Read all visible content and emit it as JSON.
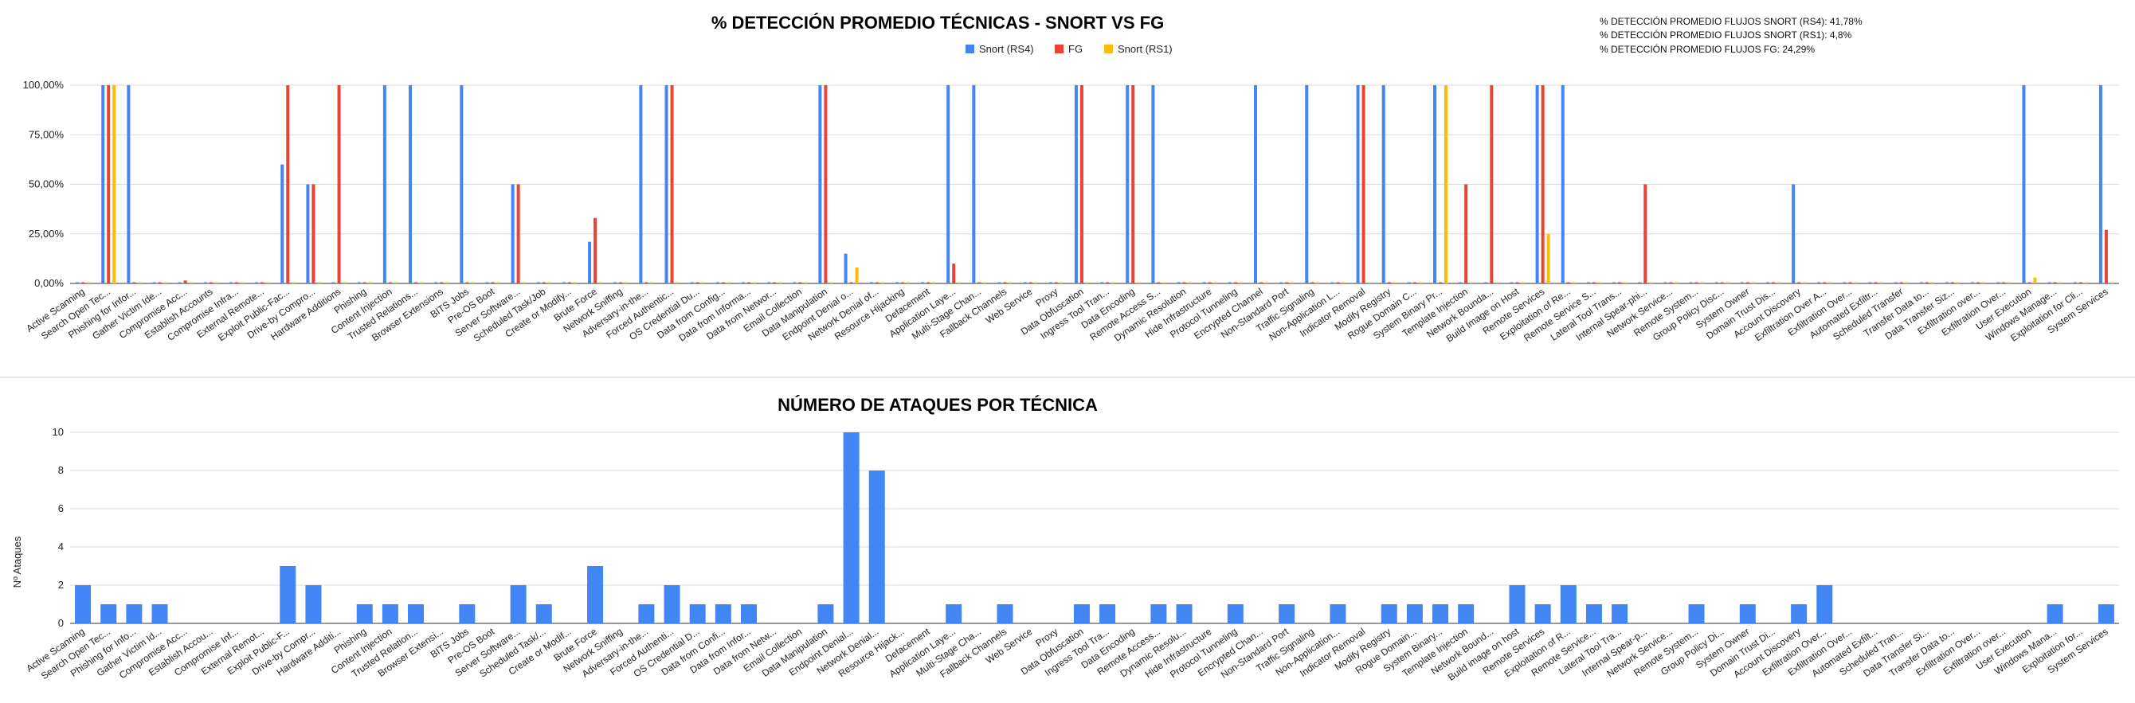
{
  "notes": [
    "% DETECCIÓN PROMEDIO FLUJOS SNORT (RS4): 41,78%",
    "% DETECCIÓN PROMEDIO FLUJOS SNORT (RS1): 4,8%",
    "% DETECCIÓN PROMEDIO FLUJOS FG: 24,29%"
  ],
  "colors": {
    "snort_rs4": "#4285f4",
    "fg": "#ea4335",
    "snort_rs1": "#fbbc04"
  },
  "chart_data": [
    {
      "type": "bar",
      "title": "% DETECCIÓN PROMEDIO TÉCNICAS - SNORT VS FG",
      "xlabel": "",
      "ylabel": "",
      "ylim": [
        0,
        100
      ],
      "yticks": [
        "0,00%",
        "25,00%",
        "50,00%",
        "75,00%",
        "100,00%"
      ],
      "legend_position": "top",
      "grid": true,
      "categories": [
        "Active Scanning",
        "Search Open Tec...",
        "Phishing for Infor...",
        "Gather Victim Ide...",
        "Compromise Acc...",
        "Establish Accounts",
        "Compromise Infra...",
        "External Remote...",
        "Exploit Public-Fac...",
        "Drive-by Compro...",
        "Hardware Additions",
        "Phishing",
        "Content Injection",
        "Trusted Relations...",
        "Browser Extensions",
        "BITS Jobs",
        "Pre-OS Boot",
        "Server Software...",
        "Scheduled Task/Job",
        "Create or Modify...",
        "Brute Force",
        "Network Sniffing",
        "Adversary-in-the...",
        "Forced Authentic...",
        "OS Credential Du...",
        "Data from Config...",
        "Data from Informa...",
        "Data from Networ...",
        "Email Collection",
        "Data Manipulation",
        "Endpoint Denial o...",
        "Network Denial of...",
        "Resource Hijacking",
        "Defacement",
        "Application Laye...",
        "Multi-Stage Chan...",
        "Fallback Channels",
        "Web Service",
        "Proxy",
        "Data Obfuscation",
        "Ingress Tool Tran...",
        "Data Encoding",
        "Remote Access S...",
        "Dynamic Resolution",
        "Hide Infrastructure",
        "Protocol Tunneling",
        "Encrypted Channel",
        "Non-Standard Port",
        "Traffic Signaling",
        "Non-Application L...",
        "Indicator Removal",
        "Modify Registry",
        "Rogue Domain C...",
        "System Binary Pr...",
        "Template Injection",
        "Network Bounda...",
        "Build Image on Host",
        "Remote Services",
        "Exploitation of Re...",
        "Remote Service S...",
        "Lateral Tool Trans...",
        "Internal Spear-phi...",
        "Network Service...",
        "Remote System...",
        "Group Policy Disc...",
        "System Owner",
        "Domain Trust Dis...",
        "Account Discovery",
        "Exfiltration Over A...",
        "Exfiltration Over...",
        "Automated Exfiltr...",
        "Scheduled Transfer",
        "Transfer Data to...",
        "Data Transfer Siz...",
        "Exfiltration over...",
        "Exfiltration Over...",
        "User Execution",
        "Windows Manage...",
        "Exploitation for Cli...",
        "System Services"
      ],
      "series": [
        {
          "name": "Snort (RS4)",
          "values": [
            0,
            100,
            100,
            0,
            0,
            0,
            0,
            0,
            60,
            50,
            0,
            0,
            100,
            100,
            0,
            100,
            0,
            50,
            0,
            0,
            21,
            0,
            100,
            100,
            0,
            0,
            0,
            0,
            0,
            100,
            15,
            0,
            0,
            0,
            100,
            100,
            0,
            0,
            0,
            100,
            0,
            100,
            100,
            0,
            0,
            0,
            100,
            0,
            100,
            0,
            100,
            100,
            0,
            100,
            0,
            0,
            0,
            100,
            100,
            0,
            0,
            0,
            0,
            0,
            0,
            0,
            0,
            50,
            0,
            0,
            0,
            0,
            0,
            0,
            0,
            0,
            100,
            0,
            0,
            100
          ]
        },
        {
          "name": "FG",
          "values": [
            0,
            100,
            0,
            0,
            1.5,
            0,
            0,
            0,
            100,
            50,
            100,
            0,
            0,
            0,
            0,
            0,
            0,
            50,
            0,
            0,
            33,
            0,
            0,
            100,
            0,
            0,
            0,
            0,
            0,
            100,
            0,
            0,
            0,
            0,
            10,
            0,
            0,
            0,
            0,
            100,
            0,
            100,
            0,
            0,
            0,
            0,
            0,
            0,
            0,
            0,
            100,
            0,
            0,
            0,
            50,
            100,
            0,
            100,
            0,
            0,
            0,
            50,
            0,
            0,
            0,
            0,
            0,
            0,
            0,
            0,
            0,
            0,
            0,
            0,
            0,
            0,
            0,
            0,
            0,
            27
          ]
        },
        {
          "name": "Snort (RS1)",
          "values": [
            0,
            100,
            0,
            0,
            0,
            0,
            0,
            0,
            0,
            0,
            0,
            0,
            0,
            0,
            0,
            0,
            0,
            0,
            0,
            0,
            0,
            0,
            0,
            0,
            0,
            0,
            0,
            0,
            0,
            0,
            8,
            0,
            0,
            0,
            0,
            0,
            0,
            0,
            0,
            0,
            0,
            0,
            0,
            0,
            0,
            0,
            0,
            0,
            0,
            0,
            0,
            0,
            0,
            100,
            0,
            0,
            0,
            25,
            0,
            0,
            0,
            0,
            0,
            0,
            0,
            0,
            0,
            0,
            0,
            0,
            0,
            0,
            0,
            0,
            0,
            0,
            3,
            0,
            0,
            0
          ]
        }
      ]
    },
    {
      "type": "bar",
      "title": "NÚMERO DE ATAQUES POR TÉCNICA",
      "xlabel": "",
      "ylabel": "Nº Ataques",
      "ylim": [
        0,
        10
      ],
      "yticks": [
        "0",
        "2",
        "4",
        "6",
        "8",
        "10"
      ],
      "grid": true,
      "categories": [
        "Active Scanning",
        "Search Open Tec...",
        "Phishing for Info...",
        "Gather Victim Id...",
        "Compromise Acc...",
        "Establish Accou...",
        "Compromise Inf...",
        "External Remot...",
        "Exploit Public-F...",
        "Drive-by Compr...",
        "Hardware Additi...",
        "Phishing",
        "Content Injection",
        "Trusted Relation...",
        "Browser Extensi...",
        "BITS Jobs",
        "Pre-OS Boot",
        "Server Software...",
        "Scheduled Task/...",
        "Create or Modif...",
        "Brute Force",
        "Network Sniffing",
        "Adversary-in-the...",
        "Forced Authenti...",
        "OS Credential D...",
        "Data from Confi...",
        "Data from Infor...",
        "Data from Netw...",
        "Email Collection",
        "Data Manipulation",
        "Endpoint Denial...",
        "Network Denial...",
        "Resource Hijack...",
        "Defacement",
        "Application Laye...",
        "Multi-Stage Cha...",
        "Fallback Channels",
        "Web Service",
        "Proxy",
        "Data Obfuscation",
        "Ingress Tool Tra...",
        "Data Encoding",
        "Remote Access...",
        "Dynamic Resolu...",
        "Hide Infrastructure",
        "Protocol Tunneling",
        "Encrypted Chan...",
        "Non-Standard Port",
        "Traffic Signaling",
        "Non-Application...",
        "Indicator Removal",
        "Modify Registry",
        "Rogue Domain...",
        "System Binary...",
        "Template Injection",
        "Network Bound...",
        "Build image on host",
        "Remote Services",
        "Exploitation of R...",
        "Remote Service...",
        "Lateral Tool Tra...",
        "Internal Spear-p...",
        "Network Service...",
        "Remote System...",
        "Group Policy Di...",
        "System Owner",
        "Domain Trust Di...",
        "Account Discovery",
        "Exfiltration Over...",
        "Exfiltration Over...",
        "Automated Exfilt...",
        "Scheduled Tran...",
        "Data Transfer Si...",
        "Transfer Data to...",
        "Exfiltration Over...",
        "Exfiltration over...",
        "User Execution",
        "Windows Mana...",
        "Exploitation for...",
        "System Services"
      ],
      "series": [
        {
          "name": "",
          "values": [
            2,
            1,
            1,
            1,
            0,
            0,
            0,
            0,
            3,
            2,
            0,
            1,
            1,
            1,
            0,
            1,
            0,
            2,
            1,
            0,
            3,
            0,
            1,
            2,
            1,
            1,
            1,
            0,
            0,
            1,
            10,
            8,
            0,
            0,
            1,
            0,
            1,
            0,
            0,
            1,
            1,
            0,
            1,
            1,
            0,
            1,
            0,
            1,
            0,
            1,
            0,
            1,
            1,
            1,
            1,
            0,
            2,
            1,
            2,
            1,
            1,
            0,
            0,
            1,
            0,
            1,
            0,
            1,
            2,
            0,
            0,
            0,
            0,
            0,
            0,
            0,
            0,
            1,
            0,
            1
          ]
        }
      ]
    }
  ]
}
